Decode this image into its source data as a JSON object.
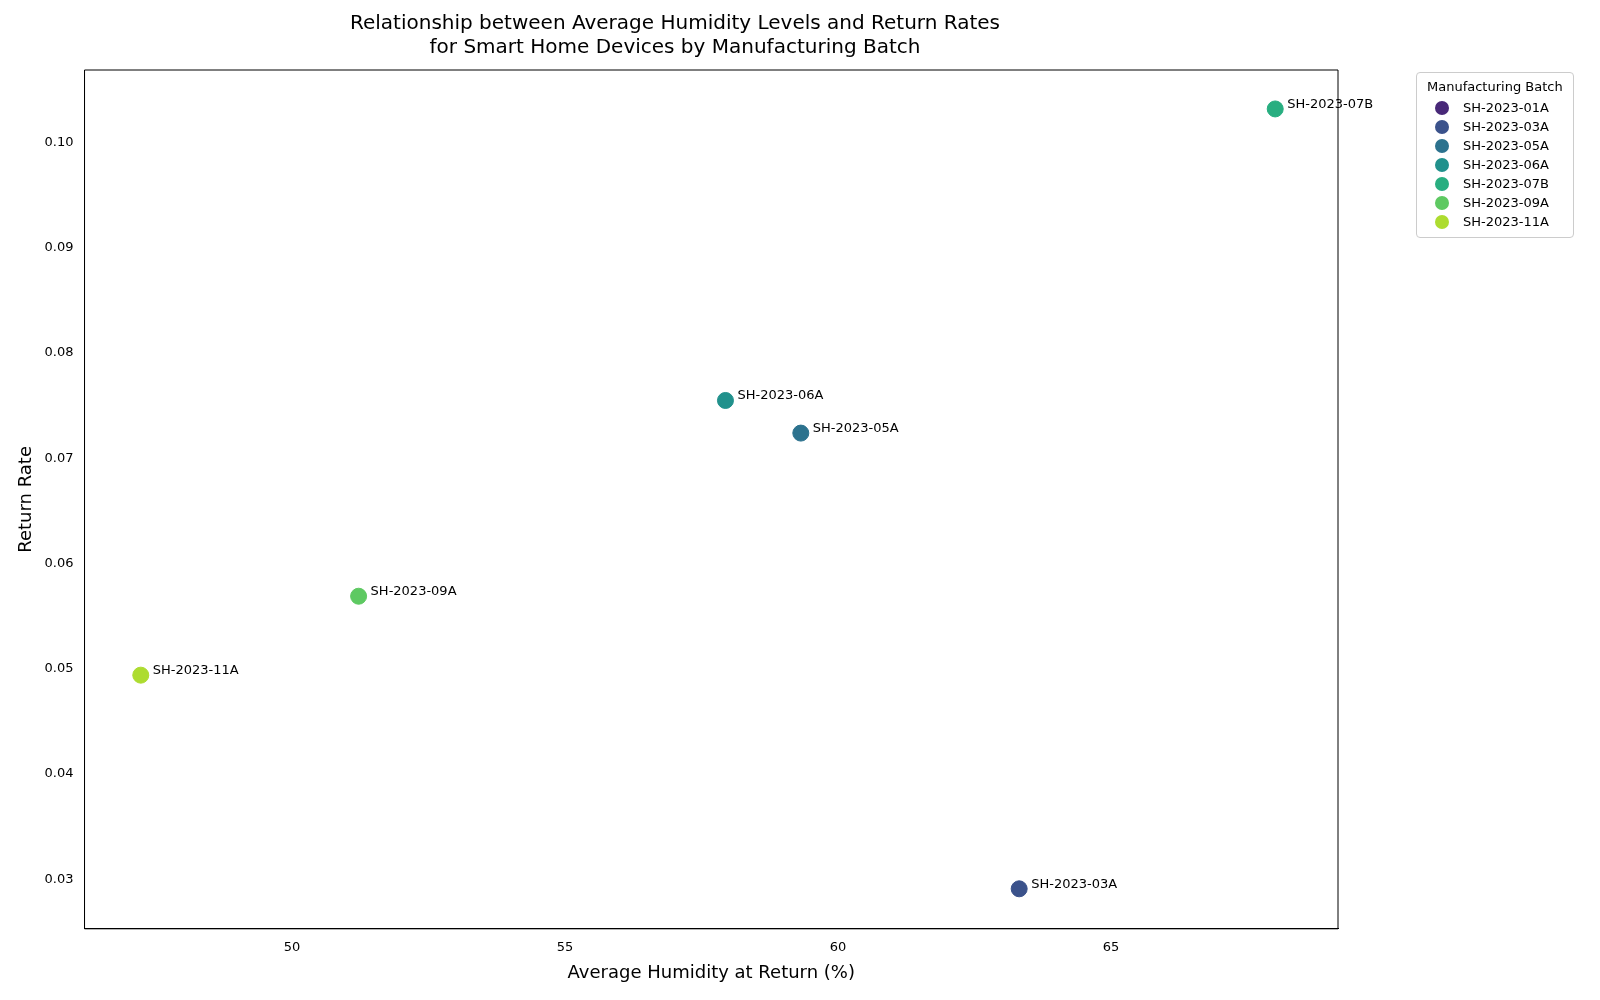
{
  "chart_data": {
    "type": "scatter",
    "title": "Relationship between Average Humidity Levels and Return Rates\nfor Smart Home Devices by Manufacturing Batch",
    "xlabel": "Average Humidity at Return (%)",
    "ylabel": "Return Rate",
    "legend_title": "Manufacturing Batch",
    "legend": "top right",
    "grid": false,
    "marker": "circle",
    "xlim": [
      46.2,
      69.16
    ],
    "xticks": [
      50,
      55,
      60,
      65
    ],
    "ylim": [
      0.0253,
      0.1069
    ],
    "yticks": [
      0.03,
      0.04,
      0.05,
      0.06,
      0.07,
      0.08,
      0.09,
      {
        "value": 0.1,
        "label": "0.10"
      }
    ],
    "series": [
      {
        "name": "SH-2023-01A",
        "color": "#482878"
      },
      {
        "name": "SH-2023-03A",
        "color": "#3b528b",
        "x": [
          63.32
        ],
        "values": [
          0.0291
        ]
      },
      {
        "name": "SH-2023-05A",
        "color": "#2c728e",
        "x": [
          59.32
        ],
        "values": [
          0.0724
        ]
      },
      {
        "name": "SH-2023-06A",
        "color": "#21918c",
        "x": [
          57.94
        ],
        "values": [
          0.0755
        ]
      },
      {
        "name": "SH-2023-07B",
        "color": "#28ae80",
        "x": [
          68.01
        ],
        "values": [
          0.1032
        ]
      },
      {
        "name": "SH-2023-09A",
        "color": "#5ec962",
        "x": [
          51.22
        ],
        "values": [
          0.0569
        ]
      },
      {
        "name": "SH-2023-11A",
        "color": "#addc30",
        "x": [
          47.23
        ],
        "values": [
          0.0494
        ]
      }
    ]
  }
}
